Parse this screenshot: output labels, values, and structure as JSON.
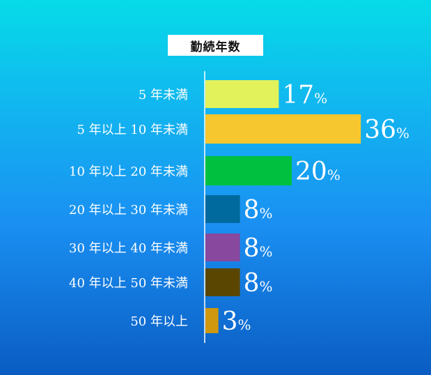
{
  "chart_data": {
    "type": "bar",
    "orientation": "horizontal",
    "title": "勤続年数",
    "categories": [
      "5 年未満",
      "5 年以上 10 年未満",
      "10 年以上 20 年未満",
      "20 年以上 30 年未満",
      "30 年以上 40 年未満",
      "40 年以上 50 年未満",
      "50 年以上"
    ],
    "values": [
      17,
      36,
      20,
      8,
      8,
      8,
      3
    ],
    "unit": "%",
    "colors": [
      "#e2f25a",
      "#f6c72e",
      "#00c040",
      "#006a9e",
      "#87489e",
      "#5a4600",
      "#d0980e"
    ],
    "grid": false,
    "legend": "none"
  }
}
